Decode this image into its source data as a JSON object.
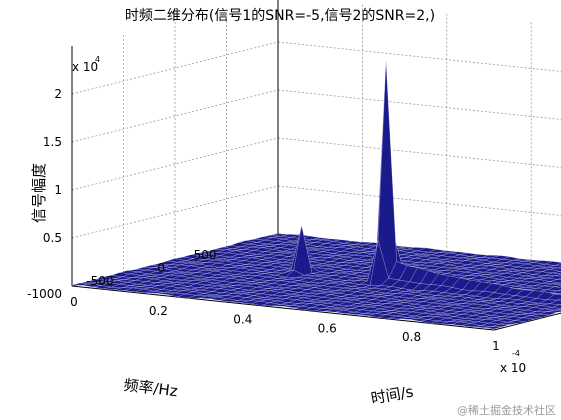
{
  "chart_data": {
    "type": "surface3d",
    "title": "时频二维分布(信号1的SNR=-5,信号2的SNR=2,)",
    "xlabel": "时间/s",
    "ylabel": "频率/Hz",
    "zlabel": "信号幅度",
    "x_exponent": "x 10",
    "x_exponent_power": "-4",
    "z_exponent": "x 10",
    "z_exponent_power": "4",
    "xlim": [
      0,
      0.0001
    ],
    "ylim": [
      -1000,
      1000
    ],
    "zlim": [
      0,
      25000
    ],
    "x_ticks": [
      0,
      2e-05,
      4e-05,
      6e-05,
      8e-05,
      0.0001
    ],
    "x_tick_labels": [
      "0",
      "0.2",
      "0.4",
      "0.6",
      "0.8",
      "1"
    ],
    "y_ticks": [
      -1000,
      -500,
      0,
      500
    ],
    "y_tick_labels": [
      "-1000",
      "-500",
      "0",
      "500"
    ],
    "z_ticks": [
      5000,
      10000,
      15000,
      20000
    ],
    "z_tick_labels": [
      "0.5",
      "1",
      "1.5",
      "2"
    ],
    "grid": true,
    "colormap": "blue-white-mesh",
    "surface_color": "#1a1a8c",
    "features": [
      {
        "x": 5e-05,
        "y": 0,
        "z": 23000,
        "description_value": "sharp peak"
      },
      {
        "x": 3e-05,
        "y": 0,
        "z": 4800,
        "description_value": "smaller peak"
      },
      {
        "x": 5e-05,
        "y": 0,
        "z": 2200,
        "description_value": "ridge along time at mid frequency"
      }
    ],
    "watermark": "@稀土掘金技术社区"
  }
}
